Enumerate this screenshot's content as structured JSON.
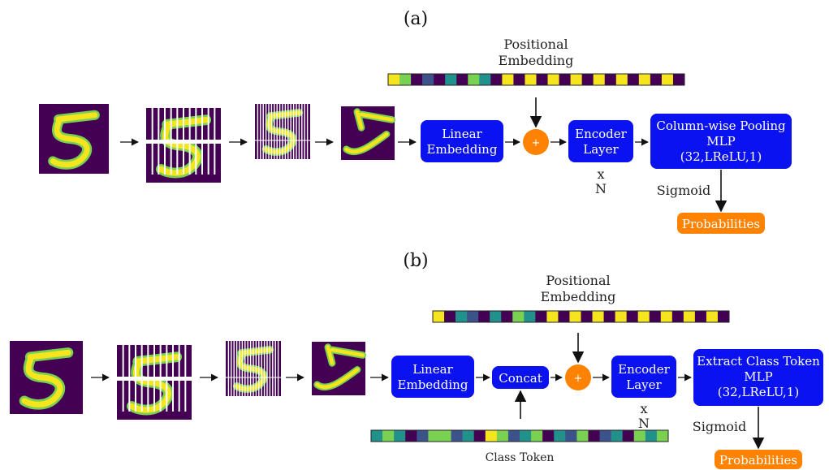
{
  "colors": {
    "block": "#0a12f0",
    "orange": "#ff8200",
    "viridis_dark": "#440154",
    "viridis_yellow": "#f5e51f",
    "viridis_green": "#7ad151",
    "viridis_teal": "#21918c",
    "viridis_blue": "#3b528b"
  },
  "panel_a": {
    "label": "(a)",
    "positional_embedding": [
      "Positional",
      "Embedding"
    ],
    "linear_embedding": [
      "Linear",
      "Embedding"
    ],
    "add_symbol": "+",
    "encoder_layer": [
      "Encoder",
      "Layer"
    ],
    "repeat": [
      "x",
      "N"
    ],
    "head": [
      "Column-wise Pooling",
      "MLP",
      "(32,LReLU,1)"
    ],
    "activation": "Sigmoid",
    "output": "Probabilities"
  },
  "panel_b": {
    "label": "(b)",
    "positional_embedding": [
      "Positional",
      "Embedding"
    ],
    "linear_embedding": [
      "Linear",
      "Embedding"
    ],
    "concat": "Concat",
    "add_symbol": "+",
    "encoder_layer": [
      "Encoder",
      "Layer"
    ],
    "repeat": [
      "x",
      "N"
    ],
    "head": [
      "Extract Class Token",
      "MLP",
      "(32,LReLU,1)"
    ],
    "activation": "Sigmoid",
    "output": "Probabilities",
    "class_token": "Class Token"
  },
  "icons": {
    "digit_image": "digit-5-image",
    "row_split": "row-split-image",
    "column_strips": "column-strips-image",
    "permuted": "permuted-patches-image"
  }
}
